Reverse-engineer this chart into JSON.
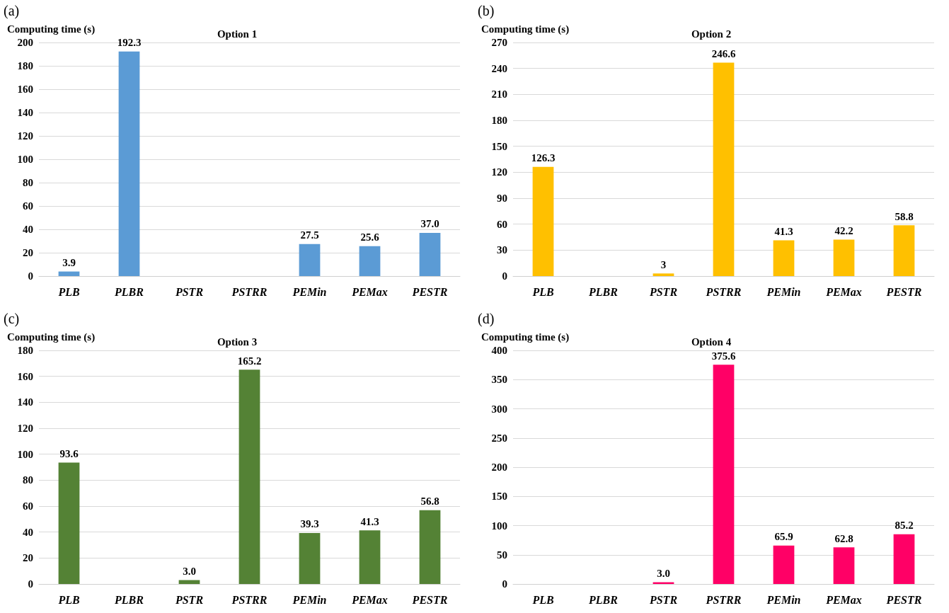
{
  "chart_data": [
    {
      "type": "bar",
      "title": "Option 1",
      "ylabel": "Computing time (s)",
      "annotations": [
        "(a)"
      ],
      "categories": [
        "PLB",
        "PLBR",
        "PSTR",
        "PSTRR",
        "PEMin",
        "PEMax",
        "PESTR"
      ],
      "series": [
        {
          "color": "#5b9bd5",
          "values": [
            3.9,
            192.3,
            null,
            null,
            27.5,
            25.6,
            37.0
          ],
          "value_labels": [
            "3.9",
            "192.3",
            null,
            null,
            "27.5",
            "25.6",
            "37.0"
          ]
        }
      ],
      "ylim": [
        0,
        200
      ],
      "yticks": [
        0,
        20,
        40,
        60,
        80,
        100,
        120,
        140,
        160,
        180,
        200
      ],
      "grid": "y"
    },
    {
      "type": "bar",
      "title": "Option 2",
      "ylabel": "Computing time (s)",
      "annotations": [
        "(b)"
      ],
      "categories": [
        "PLB",
        "PLBR",
        "PSTR",
        "PSTRR",
        "PEMin",
        "PEMax",
        "PESTR"
      ],
      "series": [
        {
          "color": "#ffc000",
          "values": [
            126.3,
            null,
            3,
            246.6,
            41.3,
            42.2,
            58.8
          ],
          "value_labels": [
            "126.3",
            null,
            "3",
            "246.6",
            "41.3",
            "42.2",
            "58.8"
          ]
        }
      ],
      "ylim": [
        0,
        270
      ],
      "yticks": [
        0,
        30,
        60,
        90,
        120,
        150,
        180,
        210,
        240,
        270
      ],
      "grid": "y"
    },
    {
      "type": "bar",
      "title": "Option 3",
      "ylabel": "Computing time (s)",
      "annotations": [
        "(c)"
      ],
      "categories": [
        "PLB",
        "PLBR",
        "PSTR",
        "PSTRR",
        "PEMin",
        "PEMax",
        "PESTR"
      ],
      "series": [
        {
          "color": "#548235",
          "values": [
            93.6,
            null,
            3.0,
            165.2,
            39.3,
            41.3,
            56.8
          ],
          "value_labels": [
            "93.6",
            null,
            "3.0",
            "165.2",
            "39.3",
            "41.3",
            "56.8"
          ]
        }
      ],
      "ylim": [
        0,
        180
      ],
      "yticks": [
        0,
        20,
        40,
        60,
        80,
        100,
        120,
        140,
        160,
        180
      ],
      "grid": "y"
    },
    {
      "type": "bar",
      "title": "Option 4",
      "ylabel": "Computing time (s)",
      "annotations": [
        "(d)"
      ],
      "categories": [
        "PLB",
        "PLBR",
        "PSTR",
        "PSTRR",
        "PEMin",
        "PEMax",
        "PESTR"
      ],
      "series": [
        {
          "color": "#ff0066",
          "values": [
            null,
            null,
            3.0,
            375.6,
            65.9,
            62.8,
            85.2
          ],
          "value_labels": [
            null,
            null,
            "3.0",
            "375.6",
            "65.9",
            "62.8",
            "85.2"
          ]
        }
      ],
      "ylim": [
        0,
        400
      ],
      "yticks": [
        0,
        50,
        100,
        150,
        200,
        250,
        300,
        350,
        400
      ],
      "grid": "y"
    }
  ]
}
